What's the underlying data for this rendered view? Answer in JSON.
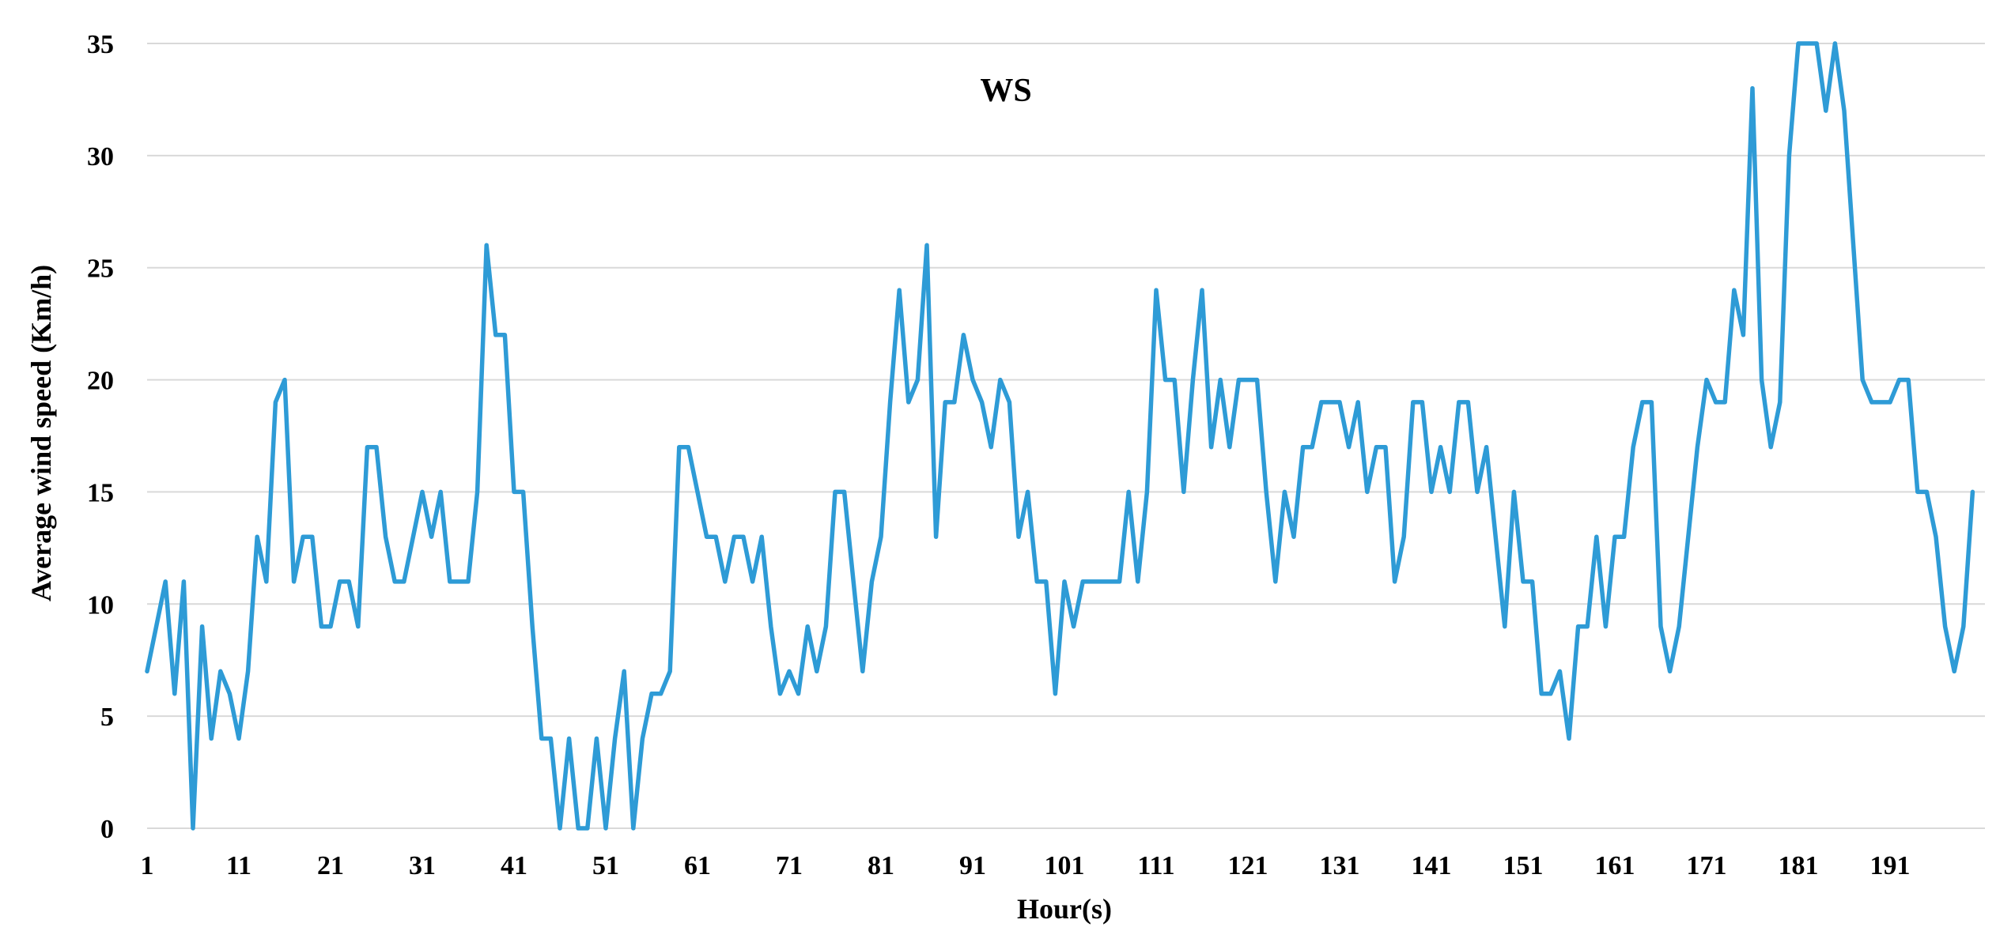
{
  "chart_data": {
    "type": "line",
    "title": "WS",
    "xlabel": "Hour(s)",
    "ylabel": "Average wind speed (Km/h)",
    "ylim": [
      0,
      35
    ],
    "yticks": [
      0,
      5,
      10,
      15,
      20,
      25,
      30,
      35
    ],
    "xticks": [
      1,
      11,
      21,
      31,
      41,
      51,
      61,
      71,
      81,
      91,
      101,
      111,
      121,
      131,
      141,
      151,
      161,
      171,
      181,
      191
    ],
    "x_start": 1,
    "grid": true,
    "legend": "none",
    "series": [
      {
        "color": "#2e9bd6",
        "values": [
          7,
          9,
          11,
          6,
          11,
          0,
          9,
          4,
          7,
          6,
          4,
          7,
          13,
          11,
          19,
          20,
          11,
          13,
          13,
          9,
          9,
          11,
          11,
          9,
          17,
          17,
          13,
          11,
          11,
          13,
          15,
          13,
          15,
          11,
          11,
          11,
          15,
          26,
          22,
          22,
          15,
          15,
          9,
          4,
          4,
          0,
          4,
          0,
          0,
          4,
          0,
          4,
          7,
          0,
          4,
          6,
          6,
          7,
          17,
          17,
          15,
          13,
          13,
          11,
          13,
          13,
          11,
          13,
          9,
          6,
          7,
          6,
          9,
          7,
          9,
          15,
          15,
          11,
          7,
          11,
          13,
          19,
          24,
          19,
          20,
          26,
          13,
          19,
          19,
          22,
          20,
          19,
          17,
          20,
          19,
          13,
          15,
          11,
          11,
          6,
          11,
          9,
          11,
          11,
          11,
          11,
          11,
          15,
          11,
          15,
          24,
          20,
          20,
          15,
          20,
          24,
          17,
          20,
          17,
          20,
          20,
          20,
          15,
          11,
          15,
          13,
          17,
          17,
          19,
          19,
          19,
          17,
          19,
          15,
          17,
          17,
          11,
          13,
          19,
          19,
          15,
          17,
          15,
          19,
          19,
          15,
          17,
          13,
          9,
          15,
          11,
          11,
          6,
          6,
          7,
          4,
          9,
          9,
          13,
          9,
          13,
          13,
          17,
          19,
          19,
          9,
          7,
          9,
          13,
          17,
          20,
          19,
          19,
          24,
          22,
          33,
          20,
          17,
          19,
          30,
          35,
          35,
          35,
          32,
          35,
          32,
          26,
          20,
          19,
          19,
          19,
          20,
          20,
          15,
          15,
          13,
          9,
          7,
          9,
          15
        ]
      }
    ]
  }
}
